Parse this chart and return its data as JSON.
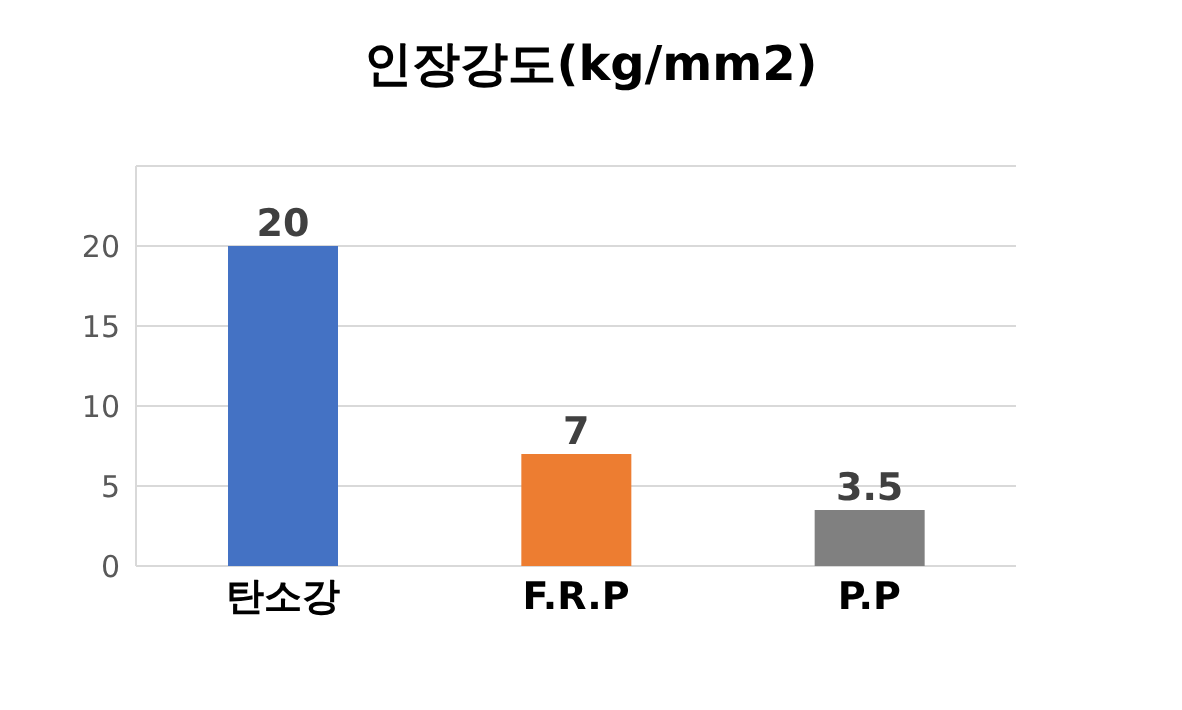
{
  "chart_data": {
    "type": "bar",
    "title": "인장강도(kg/mm2)",
    "categories": [
      "탄소강",
      "F.R.P",
      "P.P"
    ],
    "values": [
      20,
      7,
      3.5
    ],
    "colors": [
      "#4472c4",
      "#ed7d31",
      "#808080"
    ],
    "ylim": [
      0,
      25
    ],
    "yticks": [
      0,
      5,
      10,
      15,
      20,
      {
        "value": 25,
        "label": null
      }
    ],
    "grid": "y",
    "data_labels": true
  }
}
